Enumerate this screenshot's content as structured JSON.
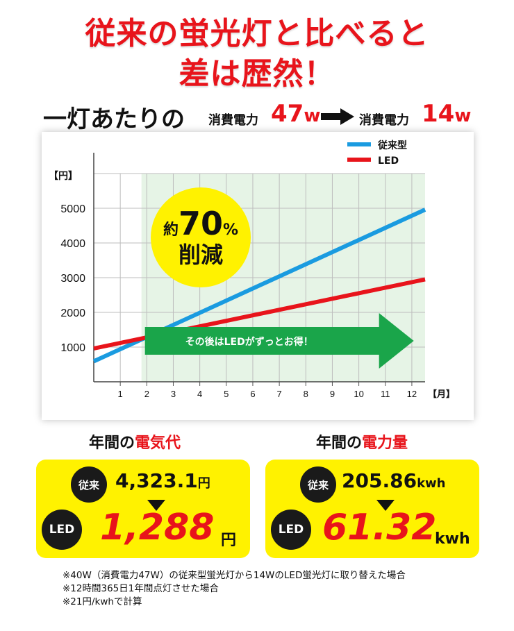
{
  "headline": {
    "line1": "従来の蛍光灯と比べると",
    "line2": "差は歴然！"
  },
  "subline": {
    "main": "一灯あたりの",
    "label_before": "消費電力",
    "value_before": "47",
    "unit_before": "w",
    "label_after": "消費電力",
    "value_after": "14",
    "unit_after": "w"
  },
  "chart_data": {
    "type": "line",
    "x": [
      0,
      12.5
    ],
    "xticks": [
      "1",
      "2",
      "3",
      "4",
      "5",
      "6",
      "7",
      "8",
      "9",
      "10",
      "11",
      "12"
    ],
    "x_unit_label": "【月】",
    "y_unit_label": "【円】",
    "yticks": [
      "1000",
      "2000",
      "3000",
      "4000",
      "5000"
    ],
    "ylim": [
      0,
      6000
    ],
    "xlim": [
      0,
      12.5
    ],
    "grid": true,
    "legend_placement": "top-right",
    "series": [
      {
        "name": "従来型",
        "color": "#1a9be0",
        "x": [
          0,
          12.5
        ],
        "values": [
          590,
          4960
        ]
      },
      {
        "name": "LED",
        "color": "#e8141b",
        "x": [
          0,
          12.5
        ],
        "values": [
          960,
          2950
        ]
      }
    ],
    "highlight_region": {
      "x_start": 1.8,
      "x_end": 12.5,
      "color": "#e6f4e6"
    },
    "badge": {
      "line1_prefix": "約",
      "line1_value": "70",
      "line1_suffix": "%",
      "line2": "削減",
      "color": "#fff200"
    },
    "banner_text": "その後はLEDがずっとお得！",
    "banner_color": "#1aa54a"
  },
  "left_panel": {
    "title_plain": "年間の",
    "title_red": "電気代",
    "old_badge": "従来",
    "old_value": "4,323.1",
    "old_unit": "円",
    "led_badge": "LED",
    "led_value": "1,288",
    "led_unit": "円"
  },
  "right_panel": {
    "title_plain": "年間の",
    "title_red": "電力量",
    "old_badge": "従来",
    "old_value": "205.86",
    "old_unit": "kwh",
    "led_badge": "LED",
    "led_value": "61.32",
    "led_unit": "kwh"
  },
  "notes": [
    "※40W（消費電力47W）の従来型蛍光灯から14WのLED蛍光灯に取り替えた場合",
    "※12時間365日1年間点灯させた場合",
    "※21円/kwhで計算"
  ]
}
